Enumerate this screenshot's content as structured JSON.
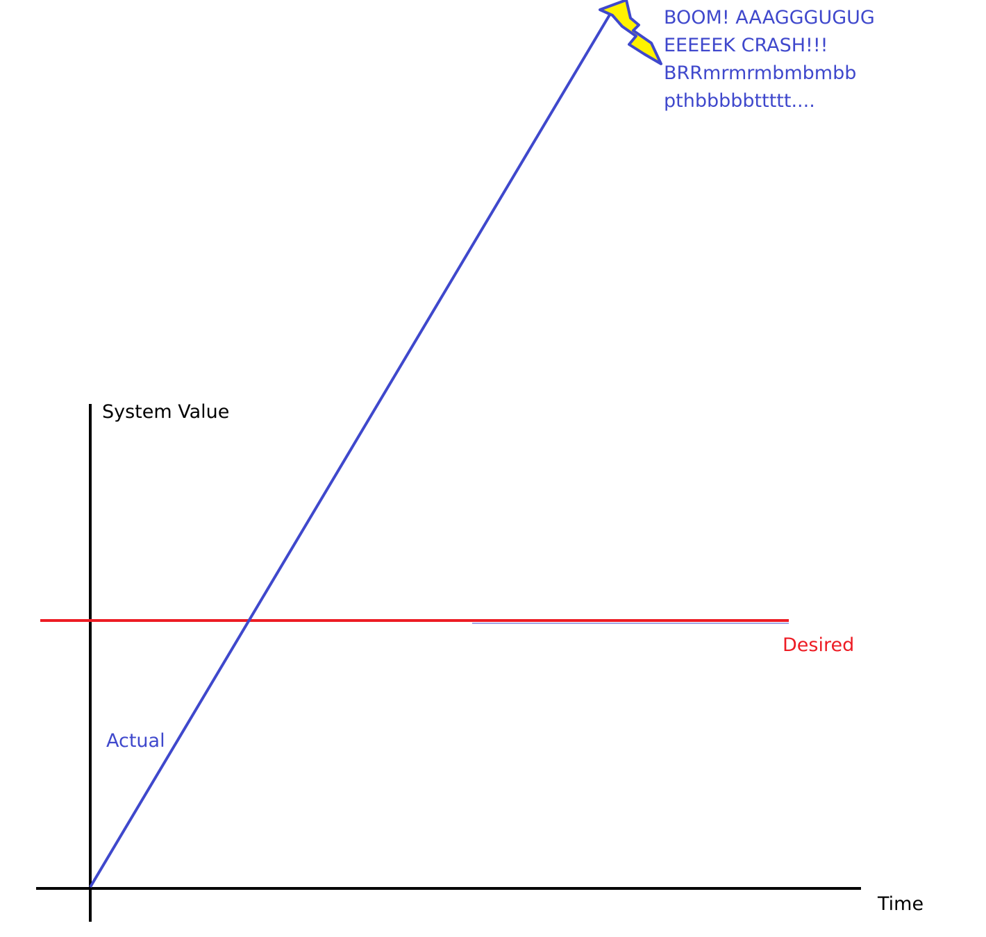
{
  "axes": {
    "y_label": "System Value",
    "x_label": "Time"
  },
  "lines": {
    "desired": {
      "label": "Desired",
      "color": "#ed1c24"
    },
    "actual": {
      "label": "Actual",
      "color": "#3f48cc"
    }
  },
  "icons": {
    "lightning": "lightning-bolt-icon",
    "lightning_fill": "#fff200"
  },
  "crash_text": {
    "lines": [
      "BOOM! AAAGGGUGUG",
      "EEEEEK CRASH!!!",
      "BRRmrmrmbmbmbb",
      "pthbbbbbttttt...."
    ]
  }
}
